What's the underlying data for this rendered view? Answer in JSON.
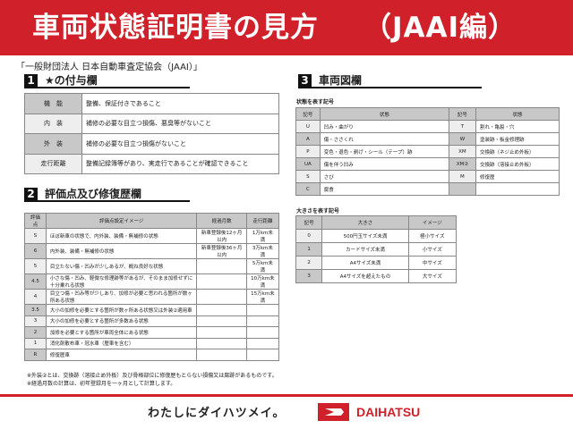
{
  "header": {
    "title": "車両状態証明書の見方",
    "subtitle": "（JAAI編）"
  },
  "organization": "「一般財団法人 日本自動車査定協会（JAAI）」",
  "section1": {
    "num": "1",
    "title": "★の付与欄",
    "rows": [
      [
        "機　能",
        "整備、保証付きであること"
      ],
      [
        "内　装",
        "補修の必要な目立つ損傷、悪臭等がないこと"
      ],
      [
        "外　装",
        "補修の必要な目立つ損傷がないこと"
      ],
      [
        "走行距離",
        "整備記録簿等があり、実走行であることが確認できること"
      ]
    ]
  },
  "section2": {
    "num": "2",
    "title": "評価点及び修復歴欄",
    "headers": [
      "評価点",
      "評価点設定イメージ",
      "経過月数",
      "走行距離"
    ],
    "rows": [
      [
        "S",
        "ほぼ新車の状態で、内外装、装備・無補修の状態",
        "新車登録後12ヶ月以内",
        "1万km未満"
      ],
      [
        "6",
        "内外装、装備・無補修の状態",
        "新車登録後36ヶ月以内",
        "3万km未満"
      ],
      [
        "5",
        "目立たない傷・凹みが少しあるが、概ね良好な状態",
        "",
        "5万km未満"
      ],
      [
        "4.5",
        "小さな傷・凹み、軽微な修理跡等があるが、そのまま加修せずに十分乗れる状態",
        "",
        "10万km未満"
      ],
      [
        "4",
        "目立つ傷・凹み等が少しあり、加修が必要と思われる箇所が数ヶ所ある状態",
        "",
        "15万km未満"
      ],
      [
        "3.5",
        "大小の加修を必要とする箇所が数ヶ所ある状態又は外装②適用車",
        "",
        ""
      ],
      [
        "3",
        "大小の加修を必要とする箇所が多数ある状態",
        "",
        ""
      ],
      [
        "2",
        "加修を必要とする箇所が車両全体にある状態",
        "",
        ""
      ],
      [
        "1",
        "消化剤散布車・冠水車（歴車を含む）",
        "",
        ""
      ],
      [
        "R",
        "修復歴車",
        "",
        ""
      ]
    ]
  },
  "notes": [
    "※外装②とは、交換跡（溶接止め外板）及び骨格部位に修復歴もとらない損傷又は腐跡があるものです。",
    "※経過月数の計算は、初年登録月を一ヶ月として計算します。"
  ],
  "section3": {
    "num": "3",
    "title": "車両図欄",
    "condition_label": "状態を表す記号",
    "condition_headers": [
      "記号",
      "状態",
      "記号",
      "状態"
    ],
    "condition_rows": [
      [
        "U",
        "凹み・曲がり",
        "T",
        "割れ・亀裂・穴"
      ],
      [
        "A",
        "傷・ささくれ",
        "W",
        "塗装跡・板金修理跡"
      ],
      [
        "P",
        "変色・退色・剥げ・シール（テープ）跡",
        "XM",
        "交換跡（ネジ止め外板）"
      ],
      [
        "UA",
        "傷を伴う凹み",
        "XM②",
        "交換跡（溶接止め外板）"
      ],
      [
        "S",
        "さび",
        "M",
        "修復歴"
      ],
      [
        "C",
        "腐食",
        "",
        ""
      ]
    ],
    "size_label": "大きさを表す記号",
    "size_headers": [
      "記号",
      "大きさ",
      "イメージ"
    ],
    "size_rows": [
      [
        "0",
        "500円玉サイズ未満",
        "極小サイズ"
      ],
      [
        "1",
        "カードサイズ未満",
        "小サイズ"
      ],
      [
        "2",
        "A4サイズ未満",
        "中サイズ"
      ],
      [
        "3",
        "A4サイズを超えたもの",
        "大サイズ"
      ]
    ]
  },
  "footer": {
    "slogan": "わたしにダイハツメイ。",
    "brand": "DAIHATSU",
    "brand_color": "#d0202a"
  }
}
